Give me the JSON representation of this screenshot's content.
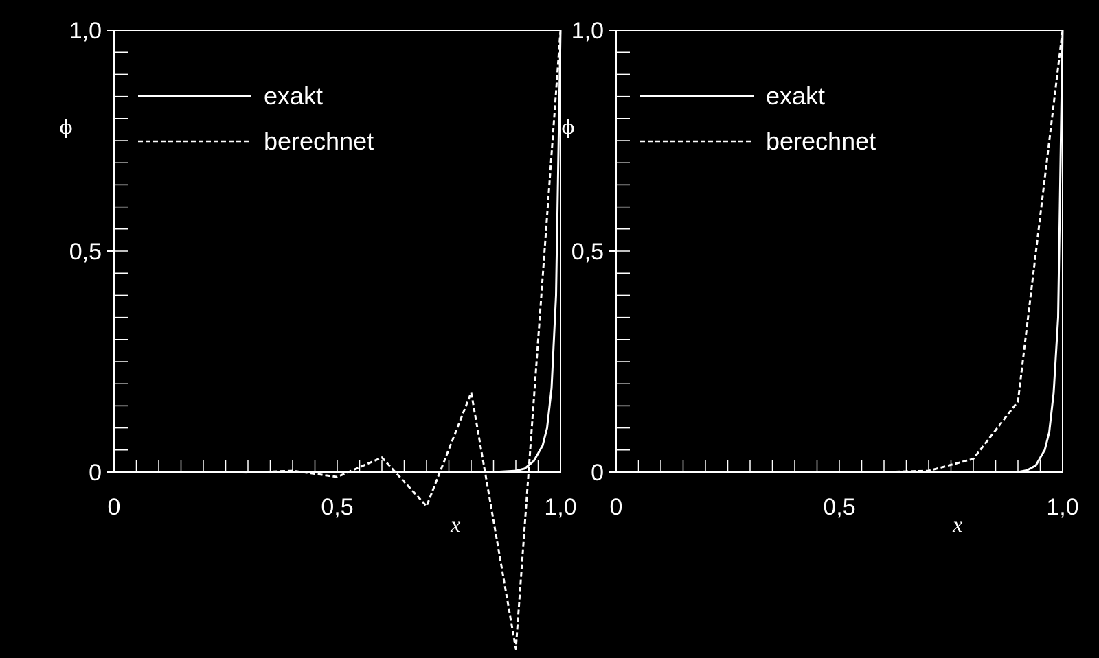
{
  "chart_data": [
    {
      "type": "line",
      "xlabel": "x",
      "ylabel": "ϕ",
      "xlim": [
        0,
        1
      ],
      "ylim": [
        0,
        1
      ],
      "x_ticks": [
        "0",
        "0,5",
        "1,0"
      ],
      "y_ticks": [
        "0",
        "0,5",
        "1,0"
      ],
      "legend_position": "top-left",
      "series": [
        {
          "name": "exakt",
          "style": "solid",
          "points": [
            [
              0,
              0
            ],
            [
              0.85,
              0
            ],
            [
              0.9,
              0.003
            ],
            [
              0.92,
              0.008
            ],
            [
              0.94,
              0.025
            ],
            [
              0.96,
              0.06
            ],
            [
              0.97,
              0.1
            ],
            [
              0.98,
              0.19
            ],
            [
              0.99,
              0.4
            ],
            [
              1.0,
              1.0
            ]
          ]
        },
        {
          "name": "berechnet",
          "style": "dashed",
          "points": [
            [
              0,
              0
            ],
            [
              0.1,
              0
            ],
            [
              0.2,
              0
            ],
            [
              0.3,
              -0.001
            ],
            [
              0.4,
              0.003
            ],
            [
              0.5,
              -0.011
            ],
            [
              0.6,
              0.033
            ],
            [
              0.7,
              -0.077
            ],
            [
              0.8,
              0.18
            ],
            [
              0.9,
              -0.4
            ],
            [
              1.0,
              1.0
            ]
          ]
        }
      ]
    },
    {
      "type": "line",
      "xlabel": "x",
      "ylabel": "ϕ",
      "xlim": [
        0,
        1
      ],
      "ylim": [
        0,
        1
      ],
      "x_ticks": [
        "0",
        "0,5",
        "1,0"
      ],
      "y_ticks": [
        "0",
        "0,5",
        "1,0"
      ],
      "legend_position": "top-left",
      "series": [
        {
          "name": "exakt",
          "style": "solid",
          "points": [
            [
              0,
              0
            ],
            [
              0.9,
              0
            ],
            [
              0.92,
              0.004
            ],
            [
              0.94,
              0.015
            ],
            [
              0.96,
              0.05
            ],
            [
              0.97,
              0.09
            ],
            [
              0.98,
              0.18
            ],
            [
              0.99,
              0.35
            ],
            [
              1.0,
              1.0
            ]
          ]
        },
        {
          "name": "berechnet",
          "style": "dashed",
          "points": [
            [
              0,
              0
            ],
            [
              0.6,
              0
            ],
            [
              0.7,
              0.003
            ],
            [
              0.8,
              0.03
            ],
            [
              0.9,
              0.16
            ],
            [
              1.0,
              1.0
            ]
          ]
        }
      ]
    }
  ]
}
